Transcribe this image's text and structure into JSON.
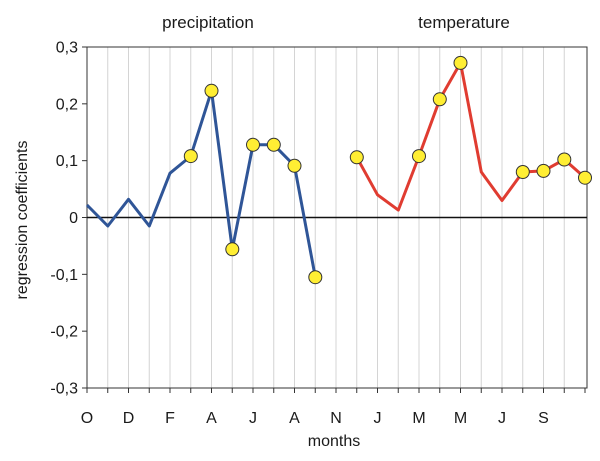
{
  "chart_data": {
    "type": "line",
    "xlabel": "months",
    "ylabel": "regression coefficients",
    "ylim": [
      -0.3,
      0.3
    ],
    "yticks": [
      0.3,
      0.2,
      0.1,
      0,
      -0.1,
      -0.2,
      -0.3
    ],
    "ytick_labels": [
      "0,3",
      "0,2",
      "0,1",
      "0",
      "-0,1",
      "-0,2",
      "-0,3"
    ],
    "xtick_labels": [
      "O",
      "D",
      "F",
      "A",
      "J",
      "A",
      "N",
      "J",
      "M",
      "M",
      "J",
      "S"
    ],
    "grid": "vertical",
    "zero_line": true,
    "series": [
      {
        "name": "precipitation",
        "color": "#2f5597",
        "values": [
          0.022,
          -0.015,
          0.032,
          -0.015,
          0.078,
          0.108,
          0.223,
          -0.056,
          0.128,
          0.128,
          0.091,
          -0.105
        ],
        "markers": [
          false,
          false,
          false,
          false,
          false,
          true,
          true,
          true,
          true,
          true,
          true,
          true
        ]
      },
      {
        "name": "temperature",
        "color": "#e03c31",
        "values": [
          0.106,
          0.04,
          0.013,
          0.108,
          0.208,
          0.272,
          0.08,
          0.03,
          0.08,
          0.082,
          0.102,
          0.07
        ],
        "markers": [
          true,
          false,
          false,
          true,
          true,
          true,
          false,
          false,
          true,
          true,
          true,
          true
        ]
      }
    ]
  }
}
